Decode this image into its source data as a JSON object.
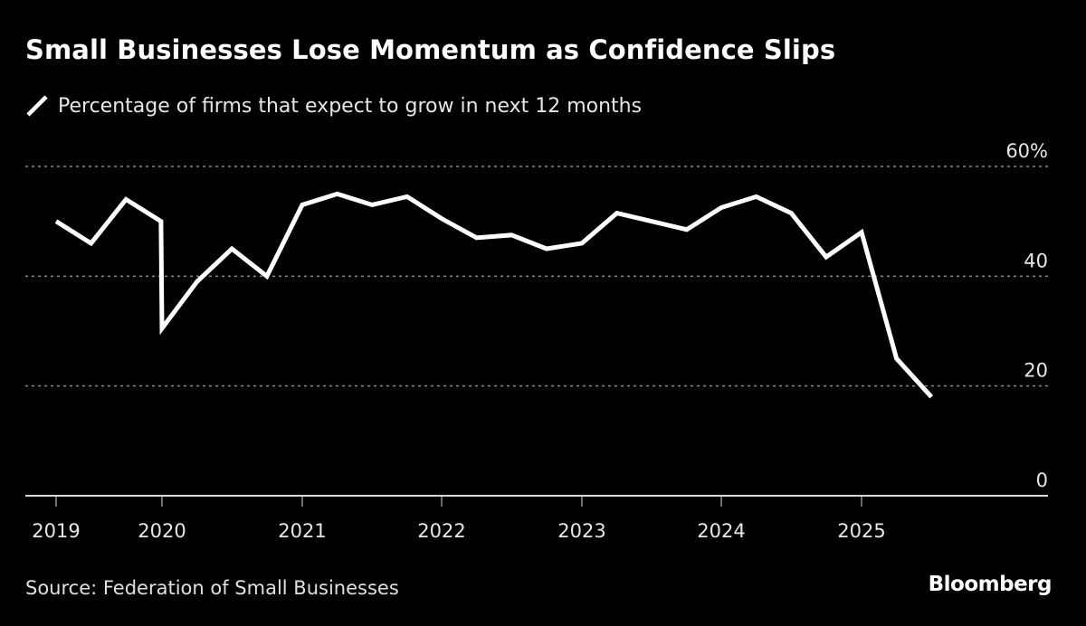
{
  "title": "Small Businesses Lose Momentum as Confidence Slips",
  "legend": {
    "label": "Percentage of firms that expect to grow in next 12 months",
    "color": "#ffffff"
  },
  "footer": {
    "source": "Source: Federation of Small Businesses",
    "brand": "Bloomberg"
  },
  "colors": {
    "background": "#000000",
    "line": "#ffffff",
    "grid": "#8a8a8a",
    "axis": "#d9d9d9",
    "text": "#e6e6e6"
  },
  "chart_data": {
    "type": "line",
    "title": "Small Businesses Lose Momentum as Confidence Slips",
    "xlabel": "",
    "ylabel": "",
    "ylim": [
      0,
      60
    ],
    "yticks": [
      0,
      20,
      40,
      60
    ],
    "ytick_labels": [
      "0",
      "20",
      "40",
      "60%"
    ],
    "xticks": [
      2019,
      2020,
      2021,
      2022,
      2023,
      2024,
      2025
    ],
    "xtick_labels": [
      "2019",
      "2020",
      "2021",
      "2022",
      "2023",
      "2024",
      "2025"
    ],
    "grid": true,
    "legend_position": "top-left",
    "series": [
      {
        "name": "Percentage of firms that expect to grow in next 12 months",
        "x": [
          "2019 Q1",
          "2019 Q2",
          "2019 Q3",
          "2019 Q4",
          "2020 Q1",
          "2020 Q2",
          "2020 Q3",
          "2020 Q4",
          "2021 Q1",
          "2021 Q2",
          "2021 Q3",
          "2021 Q4",
          "2022 Q1",
          "2022 Q2",
          "2022 Q3",
          "2022 Q4",
          "2023 Q1",
          "2023 Q2",
          "2023 Q3",
          "2023 Q4",
          "2024 Q1",
          "2024 Q2",
          "2024 Q3",
          "2024 Q4",
          "2025 Q1",
          "2025 Q2",
          "2025 Q3"
        ],
        "values": [
          50,
          46,
          54,
          50,
          30.5,
          39,
          45,
          40,
          53,
          55,
          53,
          54.5,
          50.5,
          47,
          47.5,
          45,
          46,
          51.5,
          50,
          48.5,
          52.5,
          54.5,
          51.5,
          43.5,
          48,
          25,
          18
        ]
      }
    ]
  }
}
